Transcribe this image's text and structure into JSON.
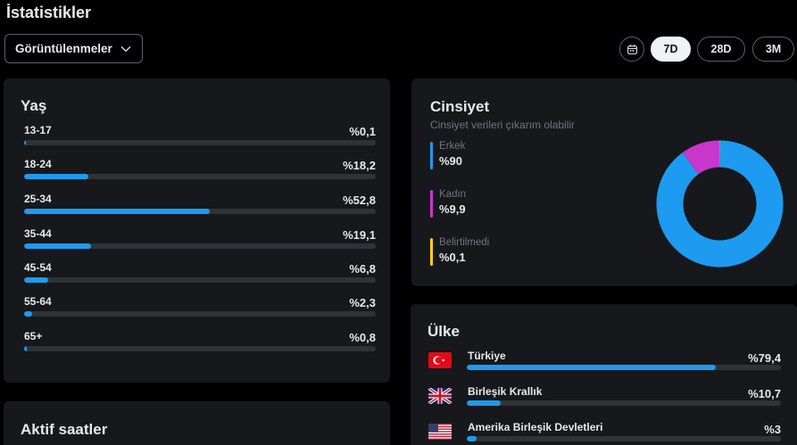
{
  "page": {
    "title": "İstatistikler"
  },
  "filter": {
    "selected": "Görüntülenmeler"
  },
  "ranges": [
    {
      "label": "7D",
      "active": true
    },
    {
      "label": "28D",
      "active": false
    },
    {
      "label": "3M",
      "active": false
    }
  ],
  "age": {
    "title": "Yaş",
    "rows": [
      {
        "label": "13-17",
        "value": "%0,1",
        "pct": 0.1
      },
      {
        "label": "18-24",
        "value": "%18,2",
        "pct": 18.2
      },
      {
        "label": "25-34",
        "value": "%52,8",
        "pct": 52.8
      },
      {
        "label": "35-44",
        "value": "%19,1",
        "pct": 19.1
      },
      {
        "label": "45-54",
        "value": "%6,8",
        "pct": 6.8
      },
      {
        "label": "55-64",
        "value": "%2,3",
        "pct": 2.3
      },
      {
        "label": "65+",
        "value": "%0,8",
        "pct": 0.8
      }
    ]
  },
  "gender": {
    "title": "Cinsiyet",
    "subtitle": "Cinsiyet verileri çıkarım olabilir",
    "items": [
      {
        "label": "Erkek",
        "value": "%90",
        "pct": 90,
        "color": "#1d9bf0"
      },
      {
        "label": "Kadın",
        "value": "%9,9",
        "pct": 9.9,
        "color": "#c936cc"
      },
      {
        "label": "Belirtilmedi",
        "value": "%0,1",
        "pct": 0.1,
        "color": "#ffd400"
      }
    ]
  },
  "country": {
    "title": "Ülke",
    "rows": [
      {
        "label": "Türkiye",
        "value": "%79,4",
        "pct": 79.4,
        "flag": "turkey-flag-icon"
      },
      {
        "label": "Birleşik Krallık",
        "value": "%10,7",
        "pct": 10.7,
        "flag": "uk-flag-icon"
      },
      {
        "label": "Amerika Birleşik Devletleri",
        "value": "%3",
        "pct": 3,
        "flag": "us-flag-icon"
      }
    ]
  },
  "active_hours": {
    "title": "Aktif saatler"
  },
  "colors": {
    "accent": "#1d9bf0",
    "card": "#16181c",
    "track": "#2f3336"
  }
}
